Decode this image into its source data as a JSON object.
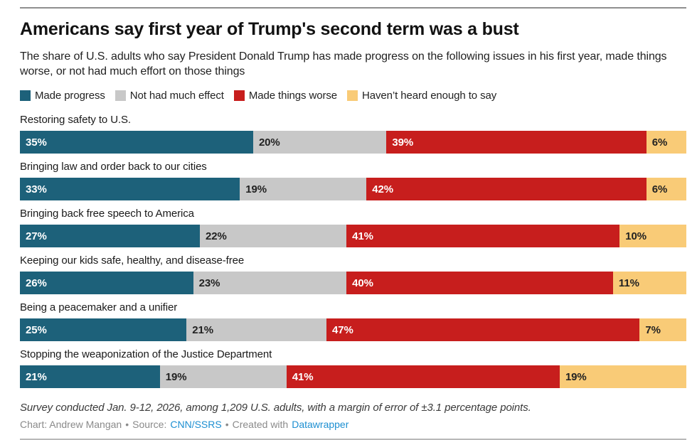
{
  "header": {
    "title": "Americans say first year of Trump's second term was a bust",
    "subtitle": "The share of U.S. adults who say President Donald Trump has made progress on the following issues in his first year, made things worse, or not had much effort on those things"
  },
  "legend": [
    {
      "label": "Made progress",
      "color": "#1d617a",
      "text_color": "#ffffff"
    },
    {
      "label": "Not had much effect",
      "color": "#c8c8c8",
      "text_color": "#222222"
    },
    {
      "label": "Made things worse",
      "color": "#c71e1d",
      "text_color": "#ffffff"
    },
    {
      "label": "Haven’t heard enough to say",
      "color": "#f9cb77",
      "text_color": "#222222"
    }
  ],
  "chart_data": {
    "type": "bar",
    "stacked": true,
    "orientation": "horizontal",
    "unit": "%",
    "title": "Americans say first year of Trump's second term was a bust",
    "xlim": [
      0,
      100
    ],
    "legend_position": "top",
    "grid": false,
    "categories": [
      "Restoring safety to U.S.",
      "Bringing law and order back to our cities",
      "Bringing back free speech to America",
      "Keeping our kids safe, healthy, and disease-free",
      "Being a peacemaker and a unifier",
      "Stopping the weaponization of the Justice Department"
    ],
    "series": [
      {
        "name": "Made progress",
        "values": [
          35,
          33,
          27,
          26,
          25,
          21
        ]
      },
      {
        "name": "Not had much effect",
        "values": [
          20,
          19,
          22,
          23,
          21,
          19
        ]
      },
      {
        "name": "Made things worse",
        "values": [
          39,
          42,
          41,
          40,
          47,
          41
        ]
      },
      {
        "name": "Haven’t heard enough to say",
        "values": [
          6,
          6,
          10,
          11,
          7,
          19
        ]
      }
    ]
  },
  "footer": {
    "note": "Survey conducted Jan. 9-12, 2026, among 1,209 U.S. adults, with a margin of error of ±3.1 percentage points.",
    "chart_credit": "Chart: Andrew Mangan",
    "dot": "•",
    "source_label": "Source:",
    "source_link": "CNN/SSRS",
    "created_with": "Created with",
    "tool_link": "Datawrapper",
    "link_color": "#1d8fd1"
  }
}
